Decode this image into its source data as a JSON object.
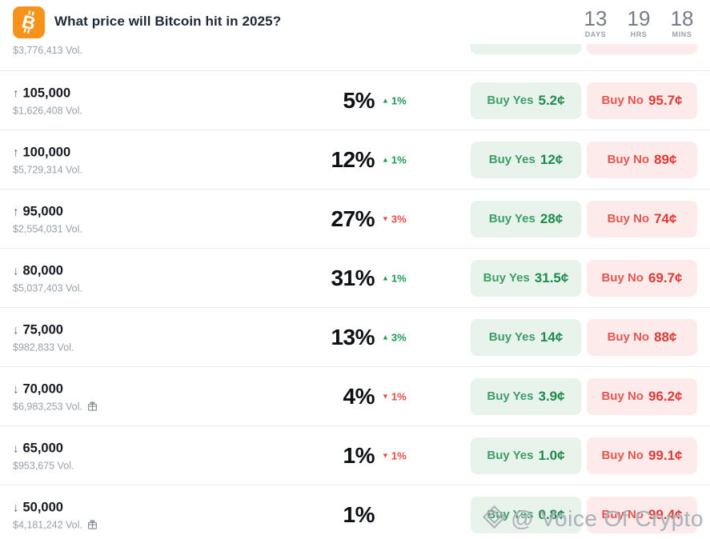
{
  "header": {
    "icon": "bitcoin-logo",
    "title": "What price will Bitcoin hit in 2025?",
    "countdown": [
      {
        "value": "13",
        "unit": "DAYS"
      },
      {
        "value": "19",
        "unit": "HRS"
      },
      {
        "value": "18",
        "unit": "MINS"
      }
    ]
  },
  "outcomes": [
    {
      "partial": true,
      "arrow": "",
      "target": "",
      "volume": "$3,776,413 Vol.",
      "gift": false,
      "chance": "",
      "delta": null,
      "yes_label": "",
      "yes_price": "",
      "no_label": "",
      "no_price": ""
    },
    {
      "partial": false,
      "arrow": "↑",
      "target": "105,000",
      "volume": "$1,626,408 Vol.",
      "gift": false,
      "chance": "5%",
      "delta": {
        "dir": "up",
        "tri": "▲",
        "value": "1%"
      },
      "yes_label": "Buy Yes",
      "yes_price": "5.2¢",
      "no_label": "Buy No",
      "no_price": "95.7¢"
    },
    {
      "partial": false,
      "arrow": "↑",
      "target": "100,000",
      "volume": "$5,729,314 Vol.",
      "gift": false,
      "chance": "12%",
      "delta": {
        "dir": "up",
        "tri": "▲",
        "value": "1%"
      },
      "yes_label": "Buy Yes",
      "yes_price": "12¢",
      "no_label": "Buy No",
      "no_price": "89¢"
    },
    {
      "partial": false,
      "arrow": "↑",
      "target": "95,000",
      "volume": "$2,554,031 Vol.",
      "gift": false,
      "chance": "27%",
      "delta": {
        "dir": "down",
        "tri": "▼",
        "value": "3%"
      },
      "yes_label": "Buy Yes",
      "yes_price": "28¢",
      "no_label": "Buy No",
      "no_price": "74¢"
    },
    {
      "partial": false,
      "arrow": "↓",
      "target": "80,000",
      "volume": "$5,037,403 Vol.",
      "gift": false,
      "chance": "31%",
      "delta": {
        "dir": "up",
        "tri": "▲",
        "value": "1%"
      },
      "yes_label": "Buy Yes",
      "yes_price": "31.5¢",
      "no_label": "Buy No",
      "no_price": "69.7¢"
    },
    {
      "partial": false,
      "arrow": "↓",
      "target": "75,000",
      "volume": "$982,833 Vol.",
      "gift": false,
      "chance": "13%",
      "delta": {
        "dir": "up",
        "tri": "▲",
        "value": "3%"
      },
      "yes_label": "Buy Yes",
      "yes_price": "14¢",
      "no_label": "Buy No",
      "no_price": "88¢"
    },
    {
      "partial": false,
      "arrow": "↓",
      "target": "70,000",
      "volume": "$6,983,253 Vol.",
      "gift": true,
      "chance": "4%",
      "delta": {
        "dir": "down",
        "tri": "▼",
        "value": "1%"
      },
      "yes_label": "Buy Yes",
      "yes_price": "3.9¢",
      "no_label": "Buy No",
      "no_price": "96.2¢"
    },
    {
      "partial": false,
      "arrow": "↓",
      "target": "65,000",
      "volume": "$953,675 Vol.",
      "gift": false,
      "chance": "1%",
      "delta": {
        "dir": "down",
        "tri": "▼",
        "value": "1%"
      },
      "yes_label": "Buy Yes",
      "yes_price": "1.0¢",
      "no_label": "Buy No",
      "no_price": "99.1¢"
    },
    {
      "partial": false,
      "arrow": "↓",
      "target": "50,000",
      "volume": "$4,181,242 Vol.",
      "gift": true,
      "chance": "1%",
      "delta": null,
      "yes_label": "Buy Yes",
      "yes_price": "0.8¢",
      "no_label": "Buy No",
      "no_price": "99.4¢"
    }
  ],
  "watermark": "@ Voice Of Crypto",
  "colors": {
    "brand_orange": "#f7931a",
    "yes_green": "#1f8a4f",
    "yes_bg": "#e7f3eb",
    "no_red": "#df3935",
    "no_bg": "#fcebea",
    "delta_up": "#1e9b52",
    "delta_down": "#ea4a42"
  }
}
